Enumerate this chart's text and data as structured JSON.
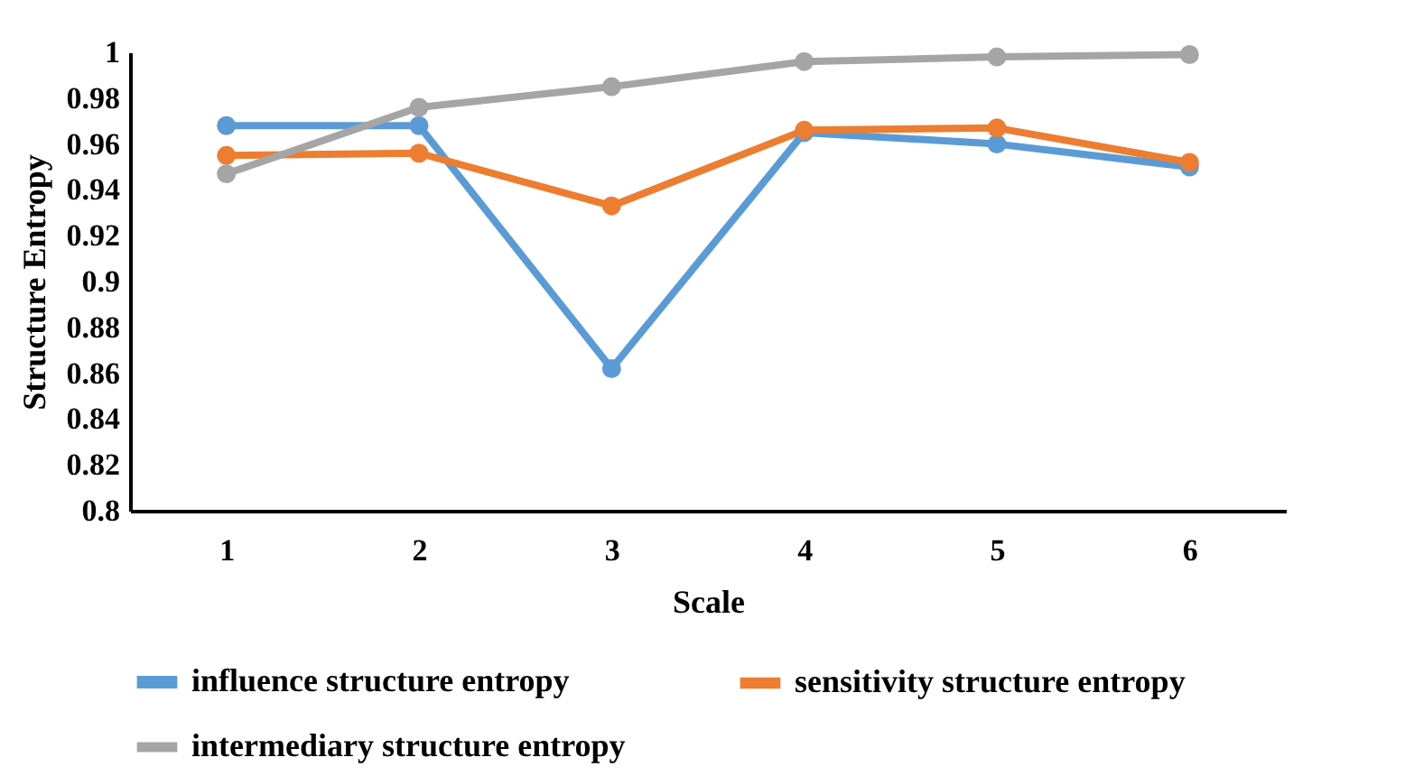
{
  "chart_data": {
    "type": "line",
    "xlabel": "Scale",
    "ylabel": "Structure Entropy",
    "categories": [
      "1",
      "2",
      "3",
      "4",
      "5",
      "6"
    ],
    "series": [
      {
        "name": "influence structure entropy",
        "color": "#5b9bd5",
        "values": [
          0.968,
          0.968,
          0.862,
          0.965,
          0.96,
          0.95
        ]
      },
      {
        "name": "sensitivity structure entropy",
        "color": "#ed7d31",
        "values": [
          0.955,
          0.956,
          0.933,
          0.966,
          0.967,
          0.952
        ]
      },
      {
        "name": "intermediary structure entropy",
        "color": "#a5a5a5",
        "values": [
          0.947,
          0.976,
          0.985,
          0.996,
          0.998,
          0.999
        ]
      }
    ],
    "ylim": [
      0.8,
      1
    ],
    "yticks": [
      0.8,
      0.82,
      0.84,
      0.86,
      0.88,
      0.9,
      0.92,
      0.94,
      0.96,
      0.98,
      1
    ],
    "grid": false,
    "legend": "bottom",
    "marker": "circle",
    "line_style": "solid"
  }
}
